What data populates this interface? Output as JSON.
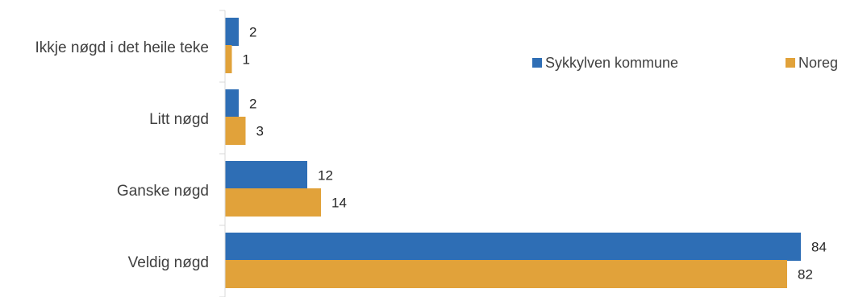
{
  "chart_data": {
    "type": "bar",
    "orientation": "horizontal",
    "title": "",
    "xlabel": "",
    "ylabel": "",
    "categories": [
      "Ikkje nøgd i det heile teke",
      "Litt nøgd",
      "Ganske nøgd",
      "Veldig nøgd"
    ],
    "series": [
      {
        "name": "Sykkylven kommune",
        "color": "#2e6eb5",
        "values": [
          2,
          2,
          12,
          84
        ]
      },
      {
        "name": "Noreg",
        "color": "#e1a23a",
        "values": [
          1,
          3,
          14,
          82
        ]
      }
    ],
    "xlim": [
      0,
      90
    ],
    "grid": false,
    "legend_position": "top-right",
    "data_labels": true
  }
}
